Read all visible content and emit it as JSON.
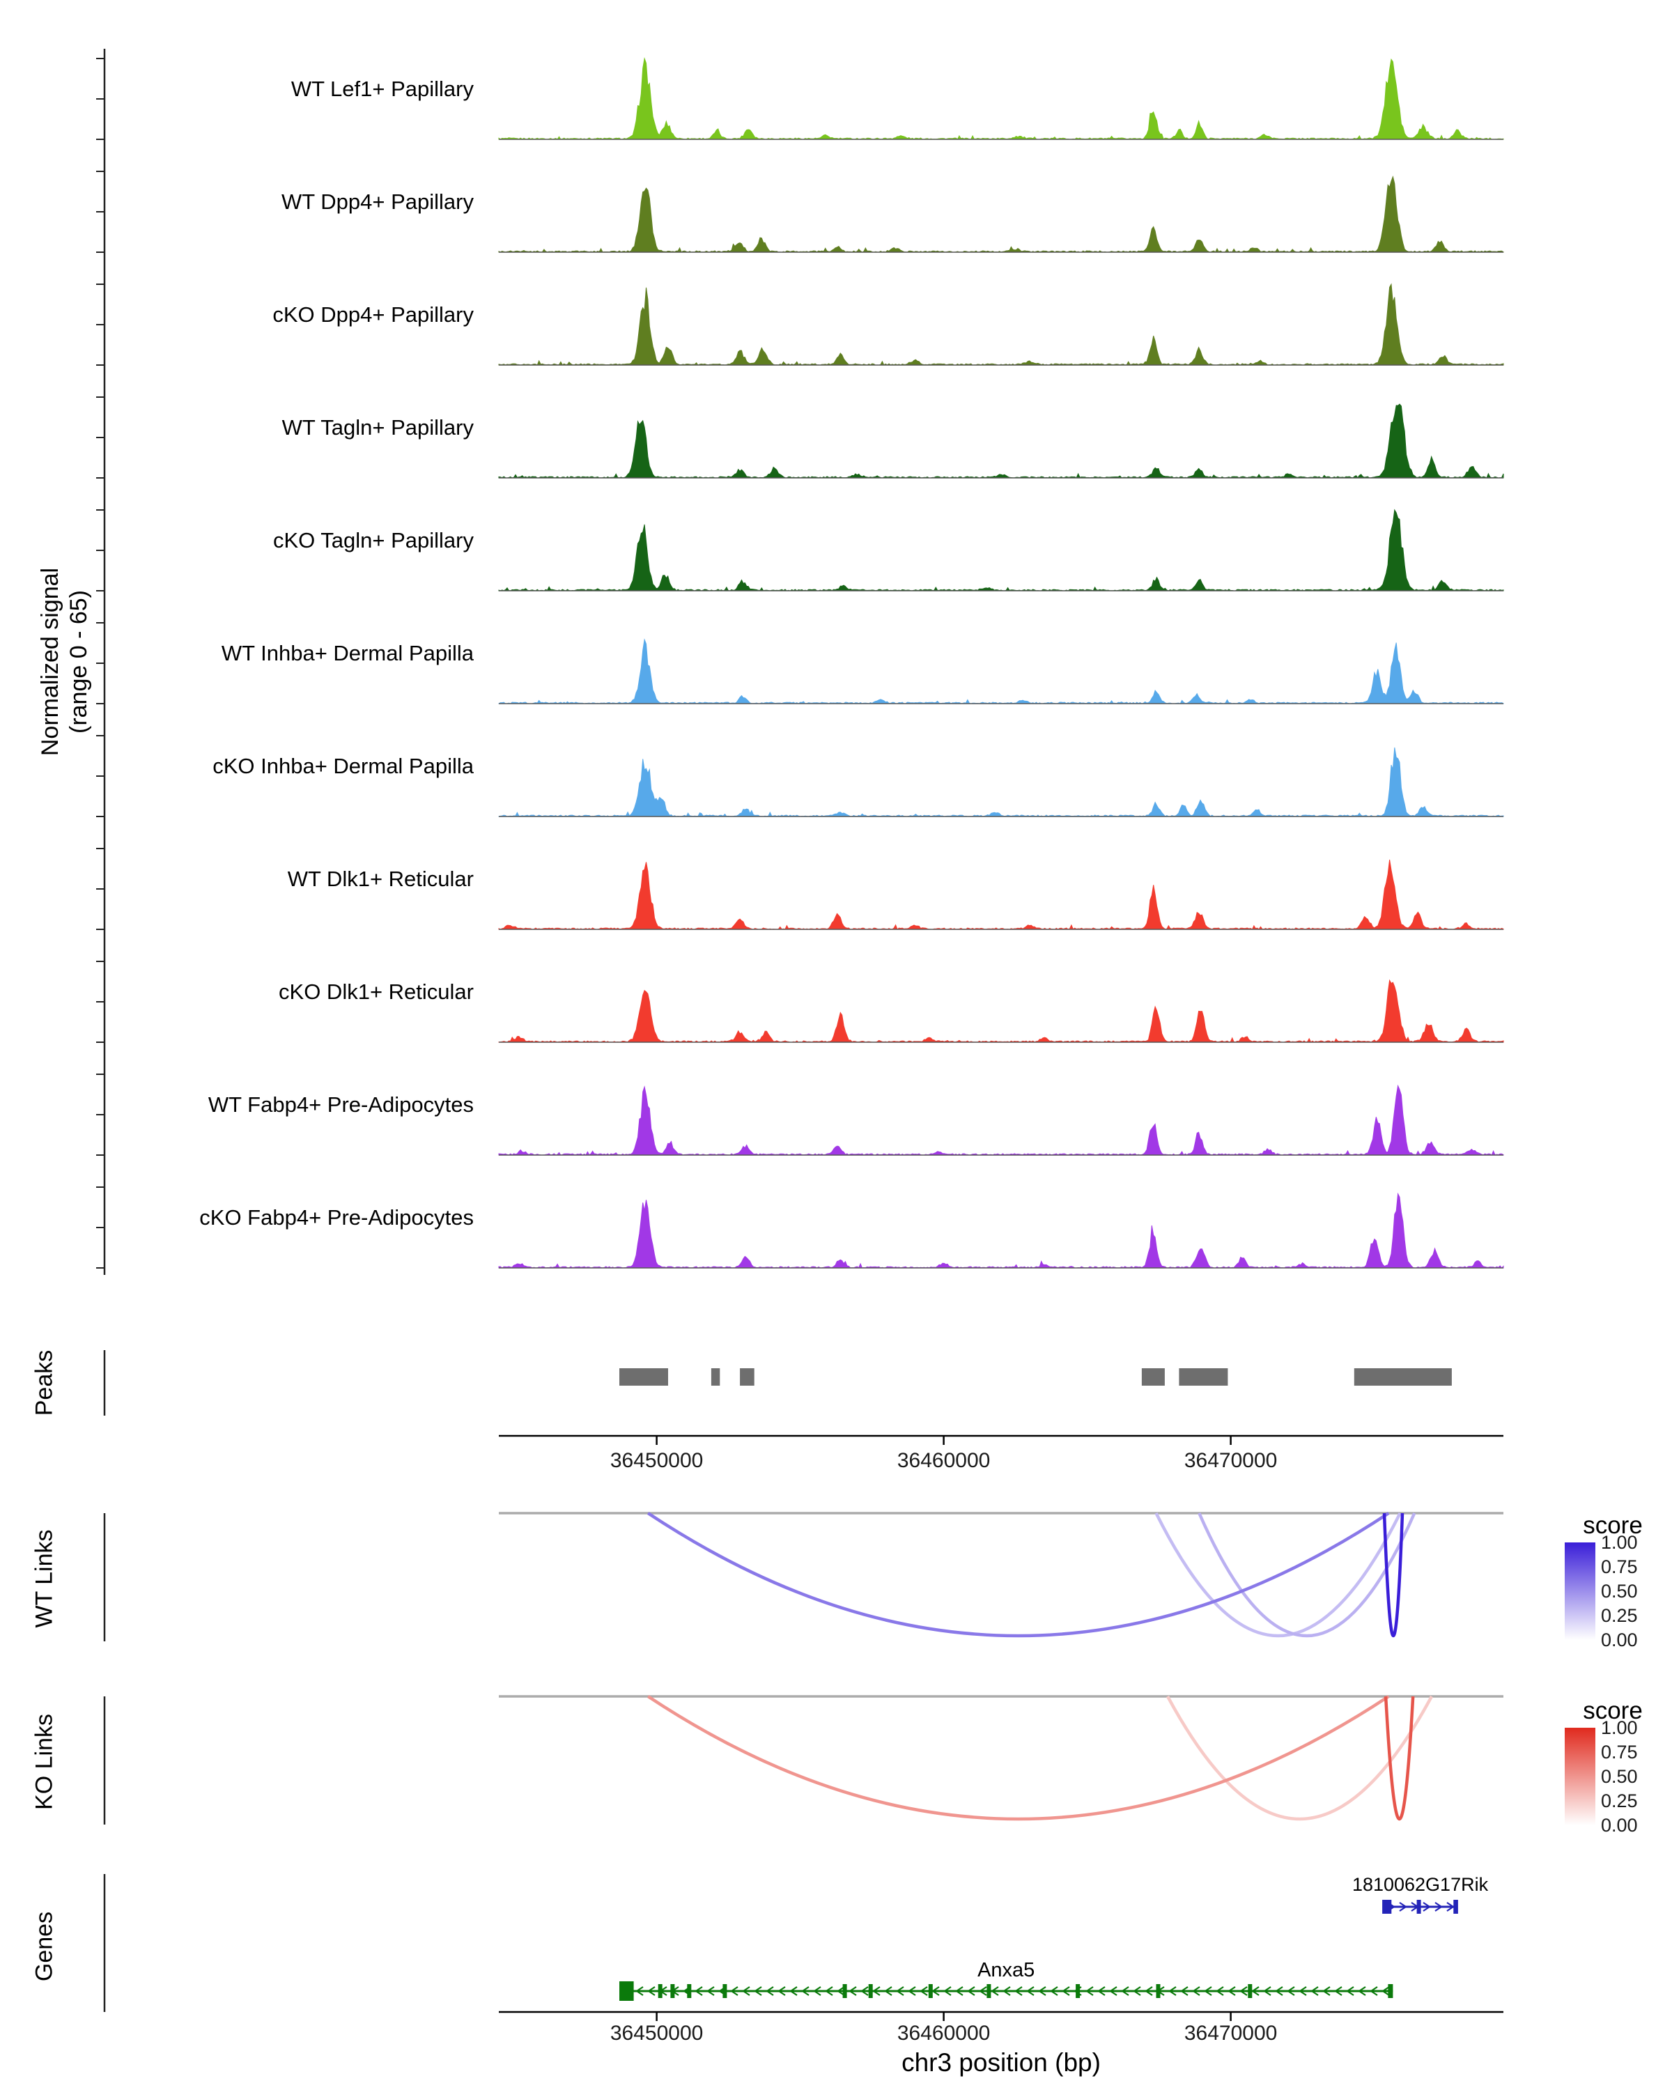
{
  "figure": {
    "background": "#FFFFFF",
    "region": {
      "chrom": "chr3",
      "start": 36444500,
      "end": 36479500
    },
    "signal_axis": {
      "label_line1": "Normalized signal",
      "label_line2": "(range 0 - 65)",
      "ymin": 0,
      "ymax": 65
    },
    "x_axis": {
      "label": "chr3 position (bp)",
      "ticks": [
        36450000,
        36460000,
        36470000
      ],
      "tick_labels": [
        "36450000",
        "36460000",
        "36470000"
      ]
    },
    "panels": {
      "peaks_label": "Peaks",
      "wt_links_label": "WT Links",
      "ko_links_label": "KO Links",
      "genes_label": "Genes"
    }
  },
  "chart_data": {
    "type": "area",
    "description": "Genome browser coverage plot: normalized ATAC signal (range 0-65) for 11 cell populations over chr3:36444500-36479500, with called peaks, WT and KO co-accessibility links (score 0-1) and gene models",
    "ylim": [
      0,
      65
    ],
    "peak_encoding": "[center_bp, height_signal_units, sd_bp]",
    "tracks": [
      {
        "name": "WT Lef1+ Papillary",
        "color": "#79C51D",
        "peaks": [
          [
            36449600,
            58,
            180
          ],
          [
            36450350,
            12,
            140
          ],
          [
            36452100,
            6,
            110
          ],
          [
            36453200,
            8,
            130
          ],
          [
            36455900,
            2.5,
            120
          ],
          [
            36458500,
            2,
            150
          ],
          [
            36462600,
            2,
            150
          ],
          [
            36467300,
            24,
            120
          ],
          [
            36468200,
            7,
            100
          ],
          [
            36468900,
            12,
            110
          ],
          [
            36471200,
            3,
            130
          ],
          [
            36475600,
            60,
            200
          ],
          [
            36476700,
            9,
            150
          ],
          [
            36477900,
            6,
            130
          ]
        ]
      },
      {
        "name": "WT Dpp4+ Papillary",
        "color": "#5F7E20",
        "peaks": [
          [
            36449600,
            55,
            175
          ],
          [
            36452850,
            8,
            140
          ],
          [
            36453650,
            10,
            130
          ],
          [
            36456300,
            4,
            110
          ],
          [
            36458300,
            2.5,
            140
          ],
          [
            36462500,
            2,
            140
          ],
          [
            36467300,
            22,
            115
          ],
          [
            36468900,
            10,
            115
          ],
          [
            36470800,
            3,
            120
          ],
          [
            36475600,
            60,
            185
          ],
          [
            36477300,
            8,
            130
          ]
        ]
      },
      {
        "name": "cKO Dpp4+ Papillary",
        "color": "#5F7E20",
        "peaks": [
          [
            36449600,
            52,
            175
          ],
          [
            36450400,
            14,
            130
          ],
          [
            36452900,
            10,
            140
          ],
          [
            36453700,
            12,
            140
          ],
          [
            36456400,
            8,
            115
          ],
          [
            36459000,
            3,
            140
          ],
          [
            36463000,
            2.5,
            140
          ],
          [
            36467300,
            20,
            115
          ],
          [
            36468900,
            12,
            120
          ],
          [
            36471000,
            3,
            120
          ],
          [
            36475600,
            62,
            185
          ],
          [
            36477400,
            7,
            125
          ]
        ]
      },
      {
        "name": "WT Tagln+ Papillary",
        "color": "#166416",
        "peaks": [
          [
            36449450,
            48,
            170
          ],
          [
            36452900,
            6,
            130
          ],
          [
            36454100,
            7,
            130
          ],
          [
            36457000,
            2.5,
            130
          ],
          [
            36462000,
            2,
            140
          ],
          [
            36467400,
            8,
            115
          ],
          [
            36468900,
            7,
            115
          ],
          [
            36472000,
            2.5,
            120
          ],
          [
            36475800,
            65,
            215
          ],
          [
            36477000,
            13,
            130
          ],
          [
            36478400,
            9,
            130
          ]
        ]
      },
      {
        "name": "cKO Tagln+ Papillary",
        "color": "#166416",
        "peaks": [
          [
            36449500,
            52,
            170
          ],
          [
            36450300,
            12,
            130
          ],
          [
            36453000,
            7,
            130
          ],
          [
            36456500,
            3,
            120
          ],
          [
            36461500,
            2,
            140
          ],
          [
            36467400,
            9,
            115
          ],
          [
            36468900,
            8,
            115
          ],
          [
            36475750,
            63,
            200
          ],
          [
            36477400,
            8,
            125
          ]
        ]
      },
      {
        "name": "WT Inhba+ Dermal Papilla",
        "color": "#57A9EA",
        "peaks": [
          [
            36449600,
            42,
            170
          ],
          [
            36453000,
            5,
            120
          ],
          [
            36457800,
            2,
            130
          ],
          [
            36462800,
            2.5,
            130
          ],
          [
            36467400,
            10,
            110
          ],
          [
            36468800,
            7,
            110
          ],
          [
            36470700,
            3,
            110
          ],
          [
            36475100,
            26,
            140
          ],
          [
            36475750,
            45,
            150
          ],
          [
            36476400,
            10,
            120
          ]
        ]
      },
      {
        "name": "cKO Inhba+ Dermal Papilla",
        "color": "#57A9EA",
        "peaks": [
          [
            36449600,
            45,
            180
          ],
          [
            36450150,
            16,
            130
          ],
          [
            36453100,
            6,
            120
          ],
          [
            36456400,
            3,
            120
          ],
          [
            36461800,
            2.5,
            130
          ],
          [
            36467400,
            10,
            110
          ],
          [
            36468350,
            8,
            110
          ],
          [
            36468950,
            12,
            120
          ],
          [
            36470900,
            4,
            110
          ],
          [
            36475750,
            55,
            160
          ],
          [
            36476700,
            7,
            120
          ]
        ]
      },
      {
        "name": "WT Dlk1+ Reticular",
        "color": "#F23B2E",
        "peaks": [
          [
            36449600,
            50,
            180
          ],
          [
            36444900,
            3,
            130
          ],
          [
            36452900,
            7,
            130
          ],
          [
            36456300,
            12,
            130
          ],
          [
            36459000,
            2.5,
            130
          ],
          [
            36463000,
            2.5,
            130
          ],
          [
            36467300,
            33,
            120
          ],
          [
            36468900,
            14,
            130
          ],
          [
            36474700,
            10,
            140
          ],
          [
            36475550,
            50,
            180
          ],
          [
            36476500,
            12,
            140
          ],
          [
            36478200,
            4,
            130
          ]
        ]
      },
      {
        "name": "cKO Dlk1+ Reticular",
        "color": "#F23B2E",
        "peaks": [
          [
            36449600,
            46,
            180
          ],
          [
            36445200,
            4,
            130
          ],
          [
            36452900,
            8,
            140
          ],
          [
            36453800,
            7,
            130
          ],
          [
            36456400,
            20,
            130
          ],
          [
            36459500,
            3,
            130
          ],
          [
            36463500,
            2.5,
            130
          ],
          [
            36467400,
            28,
            120
          ],
          [
            36468950,
            24,
            130
          ],
          [
            36470500,
            4,
            120
          ],
          [
            36475650,
            55,
            180
          ],
          [
            36476900,
            14,
            150
          ],
          [
            36478200,
            10,
            130
          ]
        ]
      },
      {
        "name": "WT Fabp4+ Pre-Adipocytes",
        "color": "#A138E6",
        "peaks": [
          [
            36449600,
            50,
            170
          ],
          [
            36445300,
            3,
            120
          ],
          [
            36450450,
            10,
            120
          ],
          [
            36453100,
            7,
            120
          ],
          [
            36456300,
            8,
            115
          ],
          [
            36459800,
            2.5,
            130
          ],
          [
            36467300,
            26,
            120
          ],
          [
            36468900,
            16,
            120
          ],
          [
            36471300,
            4,
            120
          ],
          [
            36475100,
            28,
            130
          ],
          [
            36475850,
            52,
            150
          ],
          [
            36476950,
            10,
            130
          ],
          [
            36478400,
            4,
            120
          ]
        ]
      },
      {
        "name": "cKO Fabp4+ Pre-Adipocytes",
        "color": "#A138E6",
        "peaks": [
          [
            36449600,
            54,
            170
          ],
          [
            36445200,
            3.5,
            120
          ],
          [
            36453100,
            8,
            130
          ],
          [
            36456400,
            7,
            115
          ],
          [
            36460000,
            3,
            130
          ],
          [
            36463500,
            2.5,
            130
          ],
          [
            36467300,
            30,
            120
          ],
          [
            36468950,
            18,
            130
          ],
          [
            36470400,
            8,
            115
          ],
          [
            36472500,
            3,
            120
          ],
          [
            36475000,
            24,
            130
          ],
          [
            36475850,
            58,
            150
          ],
          [
            36477100,
            12,
            140
          ],
          [
            36478600,
            5,
            120
          ]
        ]
      }
    ],
    "peaks_track": {
      "color": "#6E6E6E",
      "intervals": [
        [
          36448700,
          36450400
        ],
        [
          36451900,
          36452200
        ],
        [
          36452900,
          36453400
        ],
        [
          36466900,
          36467700
        ],
        [
          36468200,
          36469900
        ],
        [
          36474300,
          36477700
        ]
      ]
    },
    "links": {
      "wt": {
        "panel_label": "WT Links",
        "legend_title": "score",
        "legend_ticks": [
          "1.00",
          "0.75",
          "0.50",
          "0.25",
          "0.00"
        ],
        "color_high": "#3A1ED8",
        "color_low": "#FFFFFF",
        "links": [
          {
            "start": 36449700,
            "end": 36475500,
            "score": 0.6
          },
          {
            "start": 36467400,
            "end": 36475900,
            "score": 0.3
          },
          {
            "start": 36468900,
            "end": 36476400,
            "score": 0.35
          },
          {
            "start": 36475350,
            "end": 36475980,
            "score": 1.0
          }
        ]
      },
      "ko": {
        "panel_label": "KO Links",
        "legend_title": "score",
        "legend_ticks": [
          "1.00",
          "0.75",
          "0.50",
          "0.25",
          "0.00"
        ],
        "color_high": "#E02A1E",
        "color_low": "#FFFFFF",
        "links": [
          {
            "start": 36449700,
            "end": 36475500,
            "score": 0.5
          },
          {
            "start": 36467800,
            "end": 36477000,
            "score": 0.25
          },
          {
            "start": 36475400,
            "end": 36476350,
            "score": 0.8
          }
        ]
      }
    },
    "genes": [
      {
        "name": "1810062G17Rik",
        "start": 36475300,
        "end": 36477900,
        "strand": "+",
        "color": "#2323B8",
        "exons": [
          [
            36475280,
            36475600
          ],
          [
            36476480,
            36476560
          ],
          [
            36477760,
            36477920
          ]
        ]
      },
      {
        "name": "Anxa5",
        "start": 36448700,
        "end": 36475650,
        "strand": "-",
        "color": "#0B7A0B",
        "exons": [
          [
            36448700,
            36449200
          ],
          [
            36450050,
            36450140
          ],
          [
            36450480,
            36450570
          ],
          [
            36451060,
            36451150
          ],
          [
            36452300,
            36452380
          ],
          [
            36456480,
            36456570
          ],
          [
            36457380,
            36457470
          ],
          [
            36459470,
            36459560
          ],
          [
            36461500,
            36461590
          ],
          [
            36464600,
            36464690
          ],
          [
            36467400,
            36467490
          ],
          [
            36470600,
            36470690
          ],
          [
            36475480,
            36475650
          ]
        ]
      }
    ]
  }
}
